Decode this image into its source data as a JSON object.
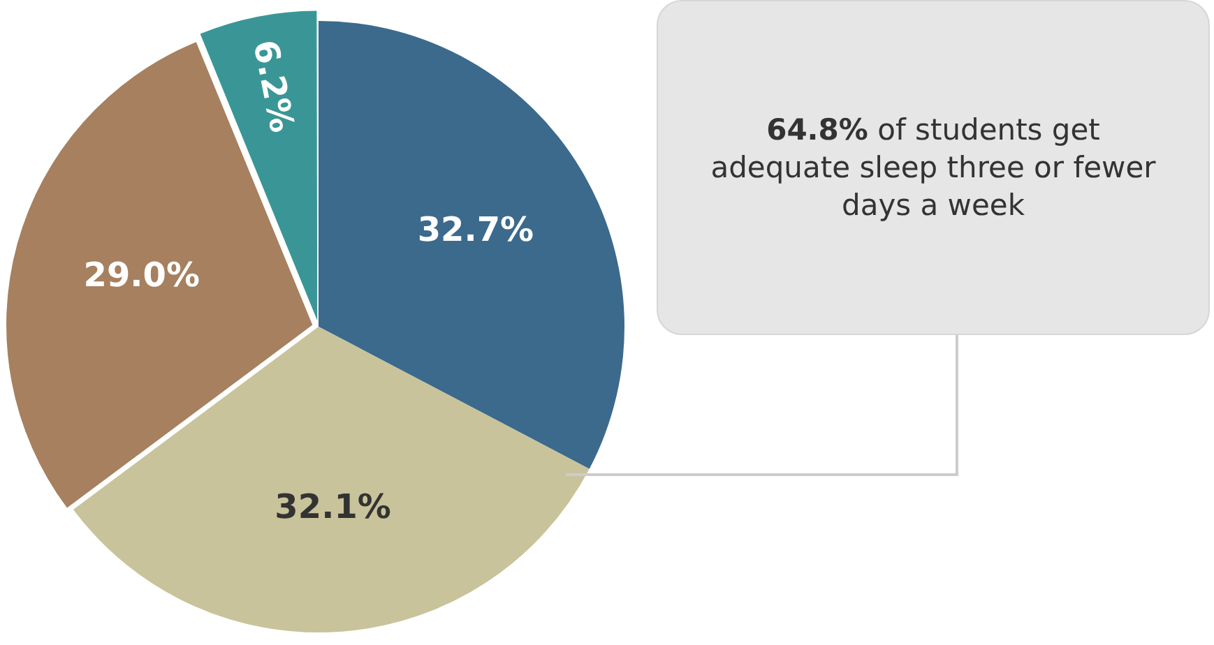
{
  "chart_data": {
    "type": "pie",
    "categories": [
      null,
      null,
      null,
      null
    ],
    "values": [
      32.7,
      32.1,
      29.0,
      6.2
    ],
    "colors": [
      "#3b6a8c",
      "#c8c39a",
      "#a6805f",
      "#3a9696"
    ],
    "value_labels": [
      "32.7%",
      "32.1%",
      "29.0%",
      "6.2%"
    ],
    "annotations": [
      "64.8% of students get adequate sleep three or fewer days a week"
    ]
  }
}
